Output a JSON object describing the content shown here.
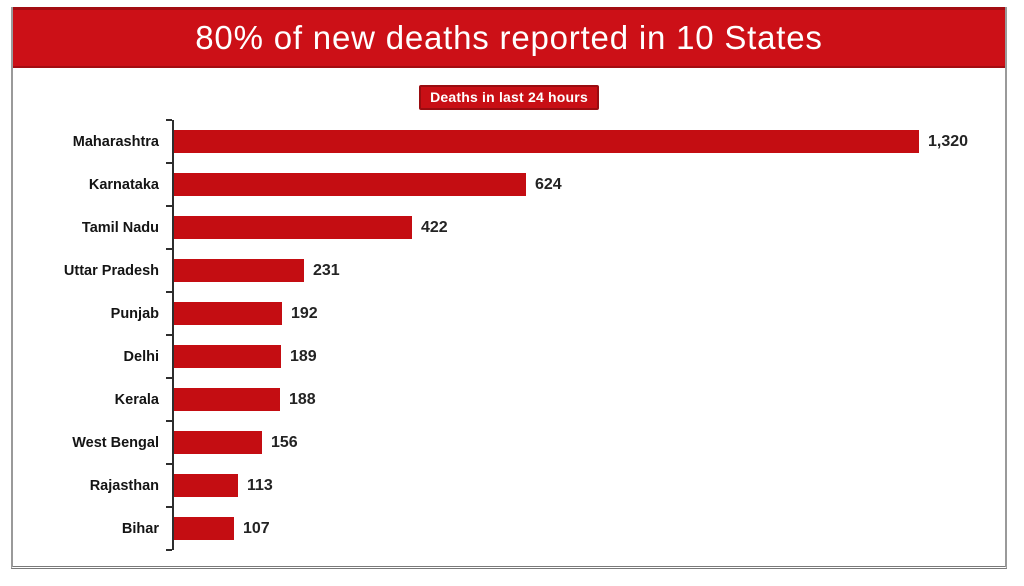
{
  "title_banner": {
    "text": "80% of new deaths reported in 10 States",
    "background": "#cc1017",
    "edge_color": "#a30d12",
    "text_color": "#ffffff"
  },
  "subtitle_badge": {
    "text": "Deaths in last 24 hours",
    "background": "#c80f15",
    "border_color": "#990c10",
    "text_color": "#ffffff"
  },
  "colors": {
    "bar_red": "#c40d12",
    "axis": "#2e2e2e",
    "label_text": "#141414",
    "value_text": "#232323",
    "frame_border": "#9a9a9a",
    "page_background": "#ffffff"
  },
  "chart_data": {
    "type": "bar",
    "orientation": "horizontal",
    "title": "80% of new deaths reported in 10 States",
    "subtitle": "Deaths in last 24 hours",
    "categories": [
      "Maharashtra",
      "Karnataka",
      "Tamil Nadu",
      "Uttar Pradesh",
      "Punjab",
      "Delhi",
      "Kerala",
      "West Bengal",
      "Rajasthan",
      "Bihar"
    ],
    "values": [
      1320,
      624,
      422,
      231,
      192,
      189,
      188,
      156,
      113,
      107
    ],
    "value_labels": [
      "1,320",
      "624",
      "422",
      "231",
      "192",
      "189",
      "188",
      "156",
      "113",
      "107"
    ],
    "xlim": [
      0,
      1480
    ],
    "grid": false,
    "legend": false,
    "bar_color": "#c40d12",
    "value_labels_position": "end-of-bar"
  }
}
